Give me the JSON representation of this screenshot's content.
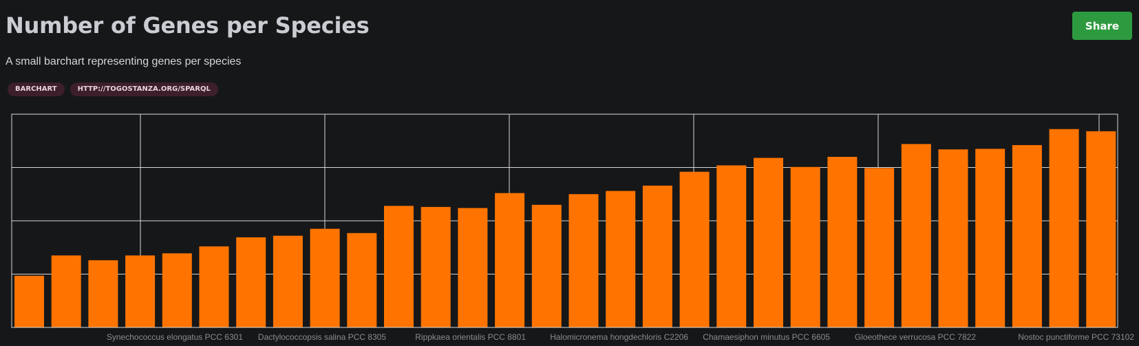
{
  "header": {
    "title": "Number of Genes per Species",
    "subtitle": "A small barchart representing genes per species",
    "tags": [
      "BARCHART",
      "HTTP://TOGOSTANZA.ORG/SPARQL"
    ],
    "share_label": "Share"
  },
  "colors": {
    "bar": "#ff7400",
    "grid": "#d9d9d9",
    "axis_label": "#8a8d92",
    "share_button": "#2e9a40",
    "tag_background": "#3d1f2c"
  },
  "chart_data": {
    "type": "bar",
    "title": "",
    "xlabel": "",
    "ylabel": "",
    "grid": true,
    "x_tick_labels": [
      "Synechococcus elongatus PCC 6301",
      "Dactylococcopsis salina PCC 8305",
      "Rippkaea orientalis PCC 8801",
      "Halomicronema hongdechloris C2206",
      "Chamaesiphon minutus PCC 6605",
      "Gloeothece verrucosa PCC 7822",
      "Nostoc punctiforme PCC 73102"
    ],
    "ylim": [
      0,
      4
    ],
    "values": [
      0.97,
      1.35,
      1.26,
      1.35,
      1.39,
      1.52,
      1.69,
      1.72,
      1.85,
      1.77,
      2.28,
      2.26,
      2.24,
      2.52,
      2.3,
      2.5,
      2.56,
      2.66,
      2.92,
      3.04,
      3.18,
      3.01,
      3.2,
      2.99,
      3.44,
      3.34,
      3.35,
      3.42,
      3.72,
      3.68
    ]
  }
}
